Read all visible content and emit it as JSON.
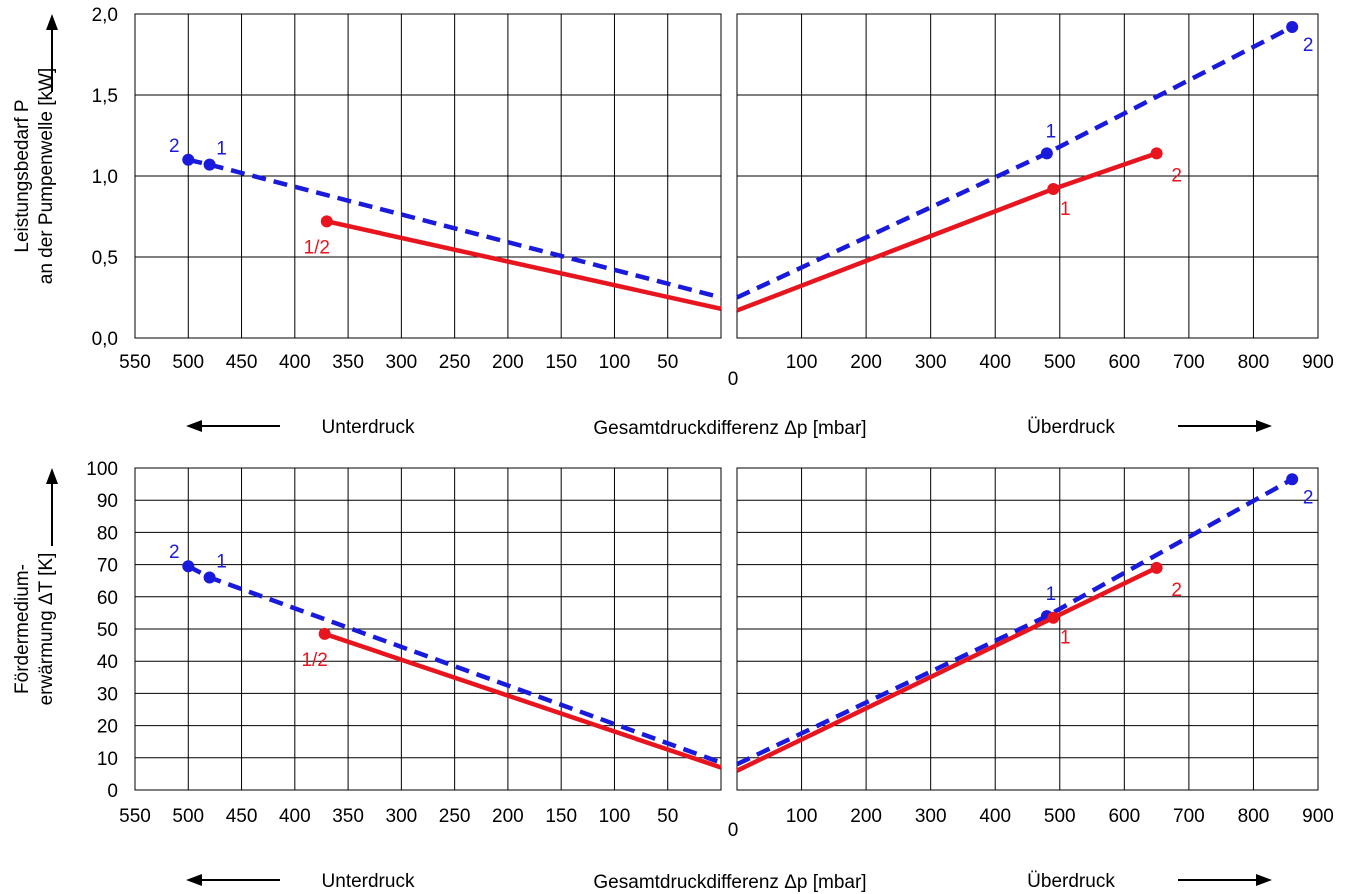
{
  "chart_data": [
    {
      "type": "line",
      "ylabel_line1": "Leistungsbedarf P",
      "ylabel_line2": "an der Pumpenwelle [kW]",
      "xlabel": "Gesamtdruckdifferenz Δp [mbar]",
      "left_region_label": "Unterdruck",
      "right_region_label": "Überdruck",
      "ylim": [
        0,
        2
      ],
      "yticks": [
        0,
        0.5,
        1,
        1.5,
        2
      ],
      "ytick_labels": [
        "0,0",
        "0,5",
        "1,0",
        "1,5",
        "2,0"
      ],
      "left_xlim": [
        550,
        0
      ],
      "left_xticks": [
        550,
        500,
        450,
        400,
        350,
        300,
        250,
        200,
        150,
        100,
        50
      ],
      "right_xlim": [
        0,
        900
      ],
      "right_xticks": [
        100,
        200,
        300,
        400,
        500,
        600,
        700,
        800,
        900
      ],
      "zero_label": "0",
      "series": [
        {
          "color": "#1a1adc",
          "dashed": true,
          "left": [
            [
              500,
              1.1
            ],
            [
              480,
              1.07
            ],
            [
              0,
              0.25
            ]
          ],
          "right": [
            [
              0,
              0.25
            ],
            [
              480,
              1.14
            ],
            [
              860,
              1.92
            ]
          ],
          "points": [
            {
              "side": "left",
              "x": 500,
              "y": 1.1,
              "label": "2"
            },
            {
              "side": "left",
              "x": 480,
              "y": 1.07,
              "label": "1"
            },
            {
              "side": "right",
              "x": 480,
              "y": 1.14,
              "label": "1"
            },
            {
              "side": "right",
              "x": 860,
              "y": 1.92,
              "label": "2"
            }
          ]
        },
        {
          "color": "#e8141e",
          "dashed": false,
          "left": [
            [
              370,
              0.72
            ],
            [
              0,
              0.18
            ]
          ],
          "right": [
            [
              0,
              0.17
            ],
            [
              490,
              0.92
            ],
            [
              650,
              1.14
            ]
          ],
          "points": [
            {
              "side": "left",
              "x": 370,
              "y": 0.72,
              "label": "1/2"
            },
            {
              "side": "right",
              "x": 490,
              "y": 0.92,
              "label": "1"
            },
            {
              "side": "right",
              "x": 650,
              "y": 1.14,
              "label": "2"
            }
          ]
        }
      ]
    },
    {
      "type": "line",
      "ylabel_line1": "Fördermedium-",
      "ylabel_line2": "erwärmung ΔT [K]",
      "xlabel": "Gesamtdruckdifferenz Δp [mbar]",
      "left_region_label": "Unterdruck",
      "right_region_label": "Überdruck",
      "ylim": [
        0,
        100
      ],
      "yticks": [
        0,
        10,
        20,
        30,
        40,
        50,
        60,
        70,
        80,
        90,
        100
      ],
      "ytick_labels": [
        "0",
        "10",
        "20",
        "30",
        "40",
        "50",
        "60",
        "70",
        "80",
        "90",
        "100"
      ],
      "left_xlim": [
        550,
        0
      ],
      "left_xticks": [
        550,
        500,
        450,
        400,
        350,
        300,
        250,
        200,
        150,
        100,
        50
      ],
      "right_xlim": [
        0,
        900
      ],
      "right_xticks": [
        100,
        200,
        300,
        400,
        500,
        600,
        700,
        800,
        900
      ],
      "zero_label": "0",
      "series": [
        {
          "color": "#1a1adc",
          "dashed": true,
          "left": [
            [
              500,
              69.5
            ],
            [
              480,
              66
            ],
            [
              0,
              8.5
            ]
          ],
          "right": [
            [
              0,
              8
            ],
            [
              480,
              54
            ],
            [
              860,
              96.5
            ]
          ],
          "points": [
            {
              "side": "left",
              "x": 500,
              "y": 69.5,
              "label": "2"
            },
            {
              "side": "left",
              "x": 480,
              "y": 66,
              "label": "1"
            },
            {
              "side": "right",
              "x": 480,
              "y": 54,
              "label": "1"
            },
            {
              "side": "right",
              "x": 860,
              "y": 96.5,
              "label": "2"
            }
          ]
        },
        {
          "color": "#e8141e",
          "dashed": false,
          "left": [
            [
              372,
              48.5
            ],
            [
              0,
              7
            ]
          ],
          "right": [
            [
              0,
              6
            ],
            [
              490,
              53.5
            ],
            [
              650,
              69
            ]
          ],
          "points": [
            {
              "side": "left",
              "x": 372,
              "y": 48.5,
              "label": "1/2"
            },
            {
              "side": "right",
              "x": 490,
              "y": 53.5,
              "label": "1"
            },
            {
              "side": "right",
              "x": 650,
              "y": 69,
              "label": "2"
            }
          ]
        }
      ]
    }
  ]
}
